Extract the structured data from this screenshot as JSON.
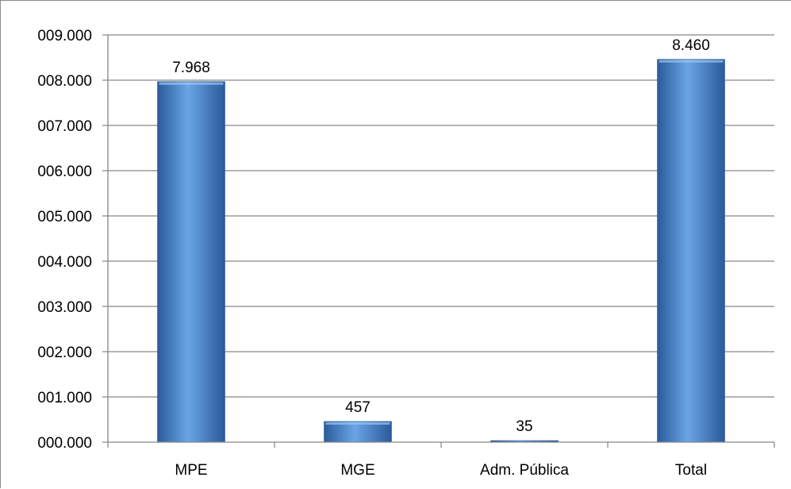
{
  "chart_data": {
    "type": "bar",
    "title": "",
    "xlabel": "",
    "ylabel": "",
    "categories": [
      "MPE",
      "MGE",
      "Adm. Pública",
      "Total"
    ],
    "values": [
      7968,
      457,
      35,
      8460
    ],
    "value_labels": [
      "7.968",
      "457",
      "35",
      "8.460"
    ],
    "ylim": [
      0,
      9000
    ],
    "y_ticks": [
      0,
      1000,
      2000,
      3000,
      4000,
      5000,
      6000,
      7000,
      8000,
      9000
    ],
    "y_tick_labels": [
      "000.000",
      "001.000",
      "002.000",
      "003.000",
      "004.000",
      "005.000",
      "006.000",
      "007.000",
      "008.000",
      "009.000"
    ],
    "grid": true,
    "legend": "none",
    "colors": {
      "bar": "#3f7fcb",
      "bar_dark": "#2a5a9a",
      "bar_light": "#6aa5e6",
      "grid": "#868686",
      "axis": "#868686"
    }
  }
}
